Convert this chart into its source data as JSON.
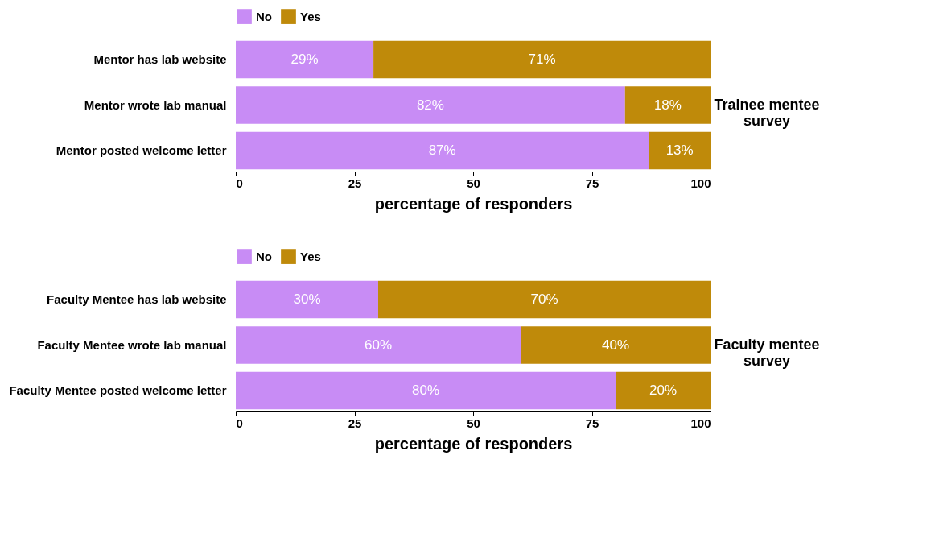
{
  "chart_data": [
    {
      "type": "bar",
      "orientation": "horizontal",
      "stacked": true,
      "categories": [
        "Mentor has lab website",
        "Mentor wrote lab manual",
        "Mentor posted welcome letter"
      ],
      "series": [
        {
          "name": "No",
          "color": "#c88cf5",
          "values": [
            29,
            82,
            87
          ],
          "value_labels": [
            "29%",
            "82%",
            "87%"
          ]
        },
        {
          "name": "Yes",
          "color": "#bf8a0a",
          "values": [
            71,
            18,
            13
          ],
          "value_labels": [
            "71%",
            "18%",
            "13%"
          ]
        }
      ],
      "xlabel": "percentage of responders",
      "xlim": [
        0,
        100
      ],
      "xticks": [
        0,
        25,
        50,
        75,
        100
      ],
      "legend": "top",
      "grid": false,
      "annotations": [
        "Trainee mentee survey"
      ]
    },
    {
      "type": "bar",
      "orientation": "horizontal",
      "stacked": true,
      "categories": [
        "Faculty Mentee has lab website",
        "Faculty Mentee wrote lab manual",
        "Faculty Mentee posted welcome letter"
      ],
      "series": [
        {
          "name": "No",
          "color": "#c88cf5",
          "values": [
            30,
            60,
            80
          ],
          "value_labels": [
            "30%",
            "60%",
            "80%"
          ]
        },
        {
          "name": "Yes",
          "color": "#bf8a0a",
          "values": [
            70,
            40,
            20
          ],
          "value_labels": [
            "70%",
            "40%",
            "20%"
          ]
        }
      ],
      "xlabel": "percentage of responders",
      "xlim": [
        0,
        100
      ],
      "xticks": [
        0,
        25,
        50,
        75,
        100
      ],
      "legend": "top",
      "grid": false,
      "annotations": [
        "Faculty mentee survey"
      ]
    }
  ]
}
